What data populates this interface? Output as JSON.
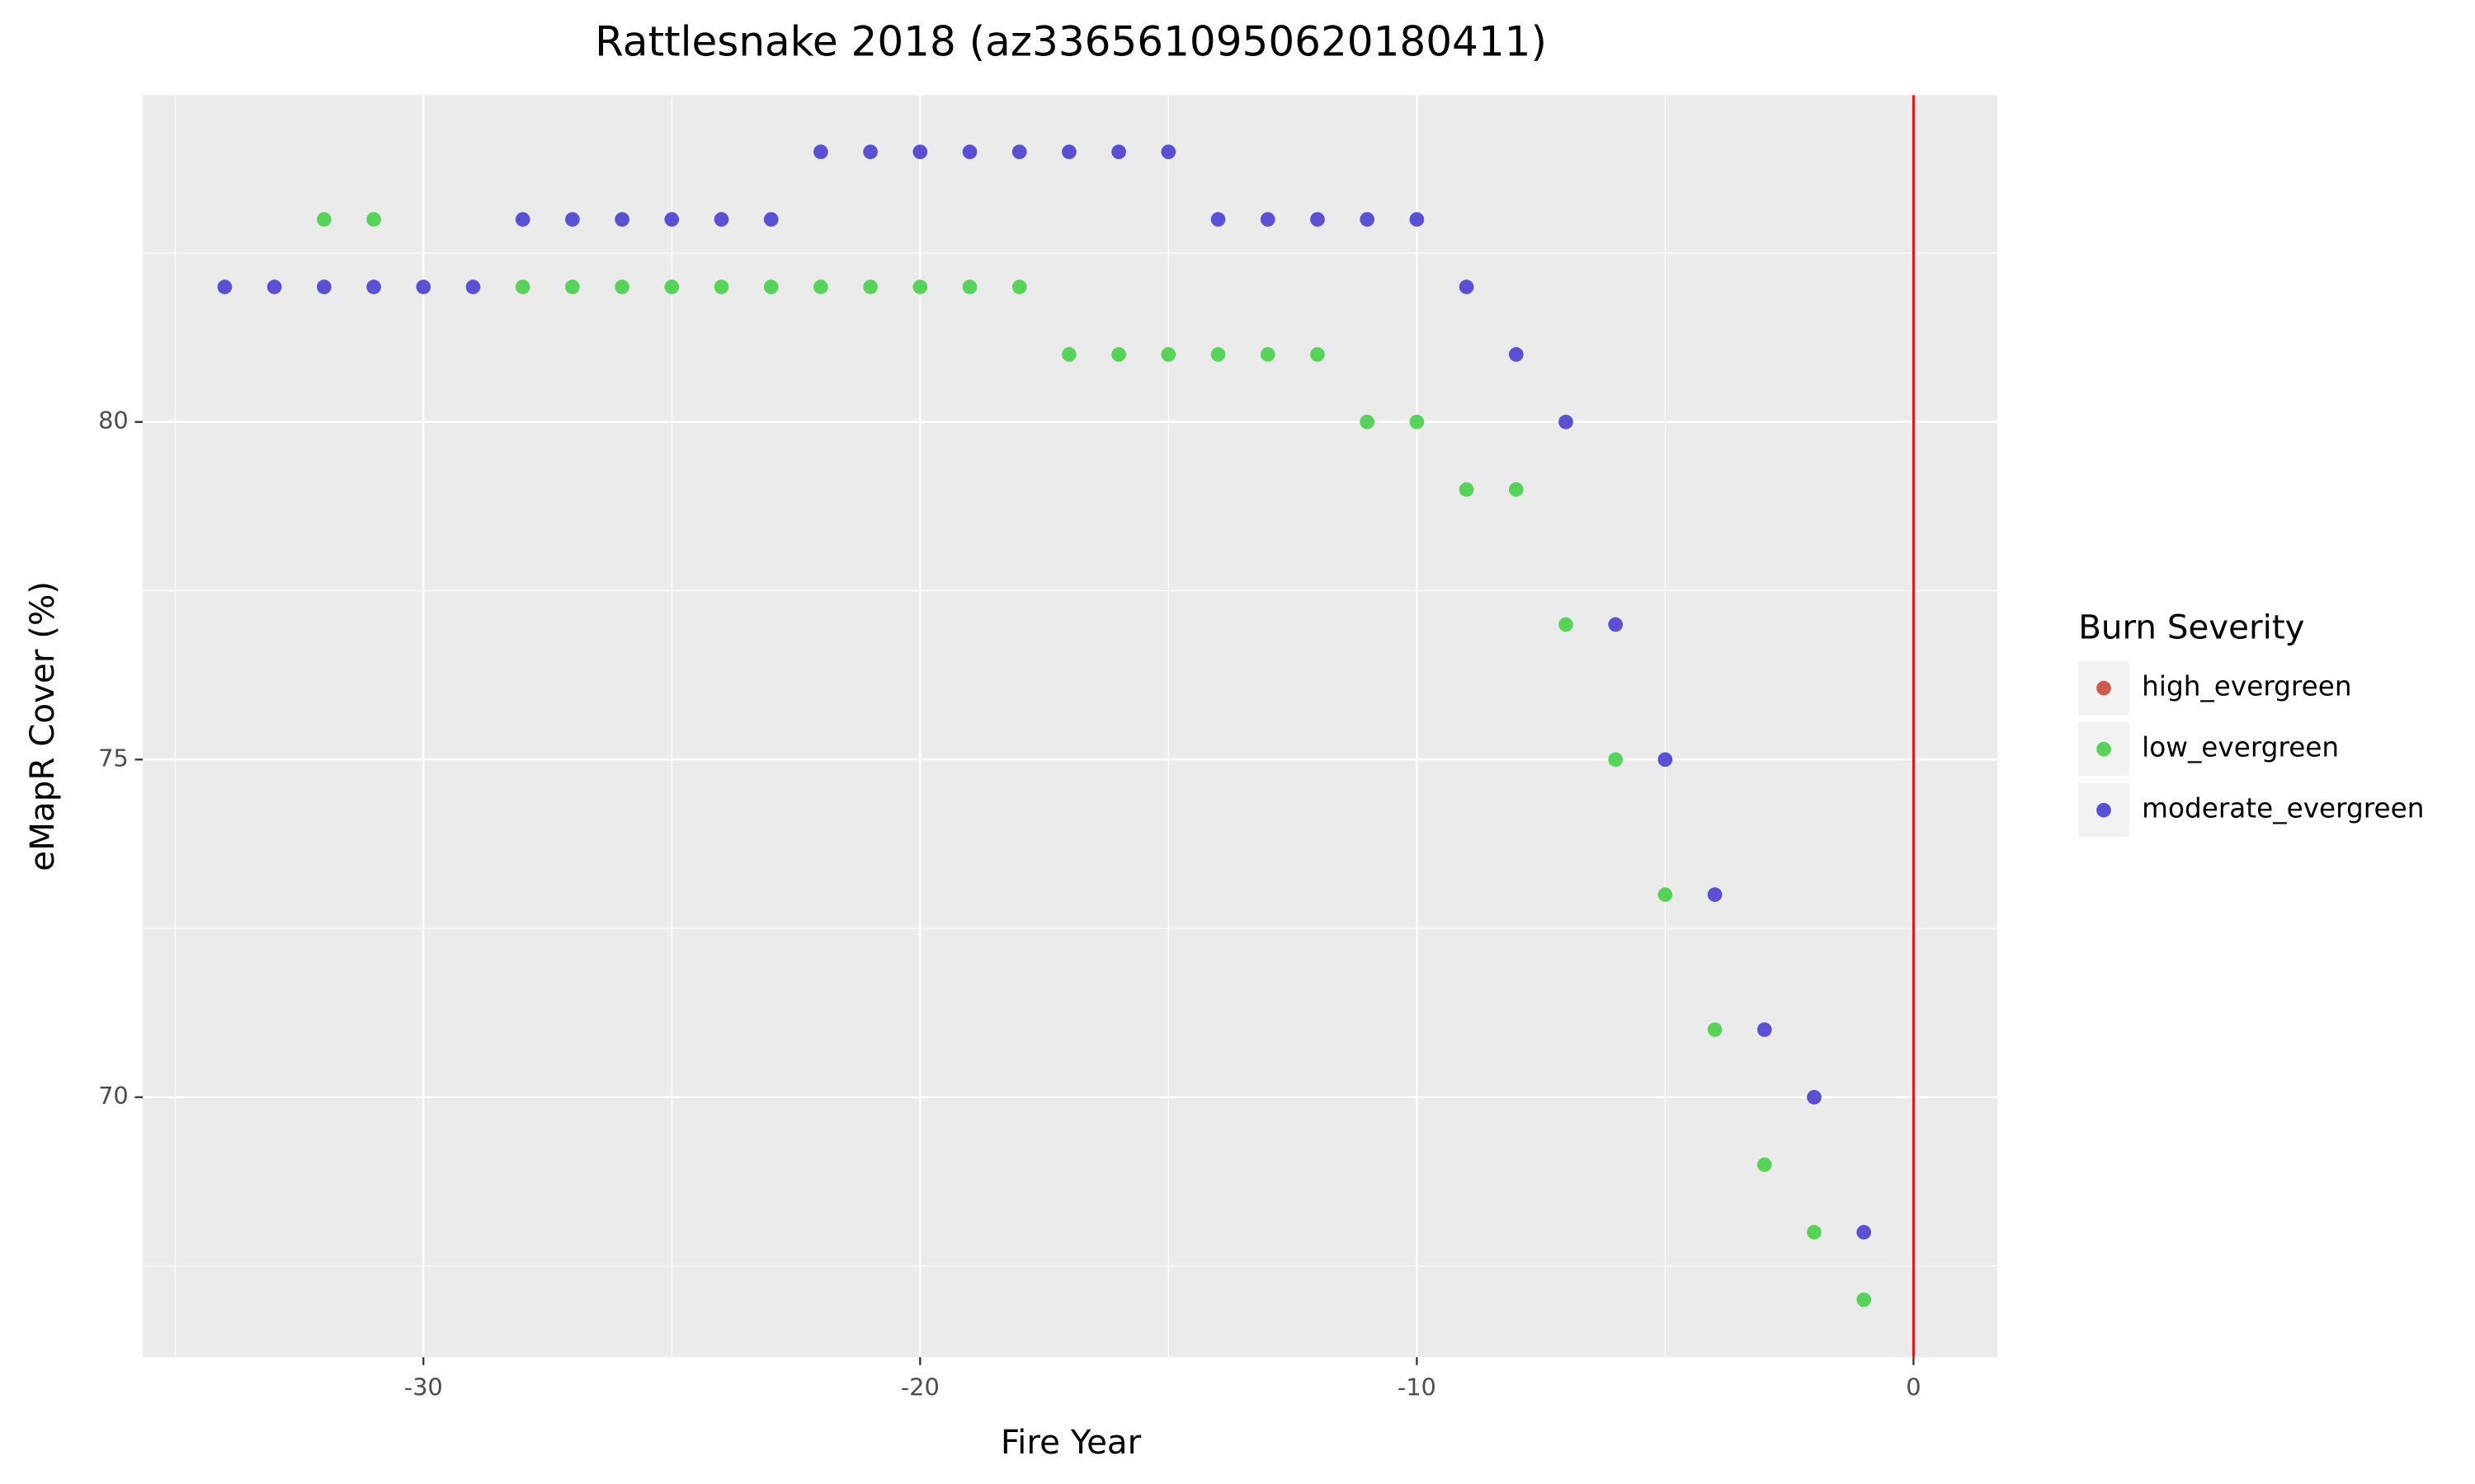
{
  "chart_data": {
    "type": "scatter",
    "title": "Rattlesnake 2018 (az3365610950620180411)",
    "x_label": "Fire Year",
    "y_label": "eMapR Cover (%)",
    "legend_title": "Burn Severity",
    "xlim": [
      -35.65,
      1.69
    ],
    "xticks": [
      -30,
      -20,
      -10,
      0
    ],
    "x_minor_ticks": [
      -35,
      -25,
      -15,
      -5
    ],
    "ylim": [
      66.15,
      84.84
    ],
    "yticks": [
      70,
      75,
      80
    ],
    "y_minor_ticks": [
      67.5,
      72.5,
      77.5,
      82.5
    ],
    "grid": true,
    "vline": 0,
    "vline_color": "#e0191f",
    "series": [
      {
        "name": "high_evergreen",
        "color": "#cc5a4e",
        "x": [],
        "values": []
      },
      {
        "name": "low_evergreen",
        "color": "#58d35a",
        "x": [
          -32,
          -31,
          -28,
          -27,
          -26,
          -25,
          -24,
          -23,
          -22,
          -21,
          -20,
          -19,
          -18,
          -17,
          -16,
          -15,
          -14,
          -13,
          -12,
          -11,
          -10,
          -9,
          -8,
          -7,
          -6,
          -5,
          -4,
          -3,
          -2,
          -1
        ],
        "values": [
          83,
          83,
          82,
          82,
          82,
          82,
          82,
          82,
          82,
          82,
          82,
          82,
          82,
          81,
          81,
          81,
          81,
          81,
          81,
          80,
          80,
          79,
          79,
          77,
          75,
          73,
          71,
          69,
          68,
          67
        ]
      },
      {
        "name": "moderate_evergreen",
        "color": "#5a50d4",
        "x": [
          -34,
          -33,
          -32,
          -31,
          -30,
          -29,
          -28,
          -27,
          -26,
          -25,
          -24,
          -23,
          -22,
          -21,
          -20,
          -19,
          -18,
          -17,
          -16,
          -15,
          -14,
          -13,
          -12,
          -11,
          -10,
          -9,
          -8,
          -7,
          -6,
          -5,
          -4,
          -3,
          -2,
          -1
        ],
        "values": [
          82,
          82,
          82,
          82,
          82,
          82,
          83,
          83,
          83,
          83,
          83,
          83,
          84,
          84,
          84,
          84,
          84,
          84,
          84,
          84,
          83,
          83,
          83,
          83,
          83,
          82,
          81,
          80,
          77,
          75,
          73,
          71,
          70,
          68
        ]
      }
    ]
  }
}
